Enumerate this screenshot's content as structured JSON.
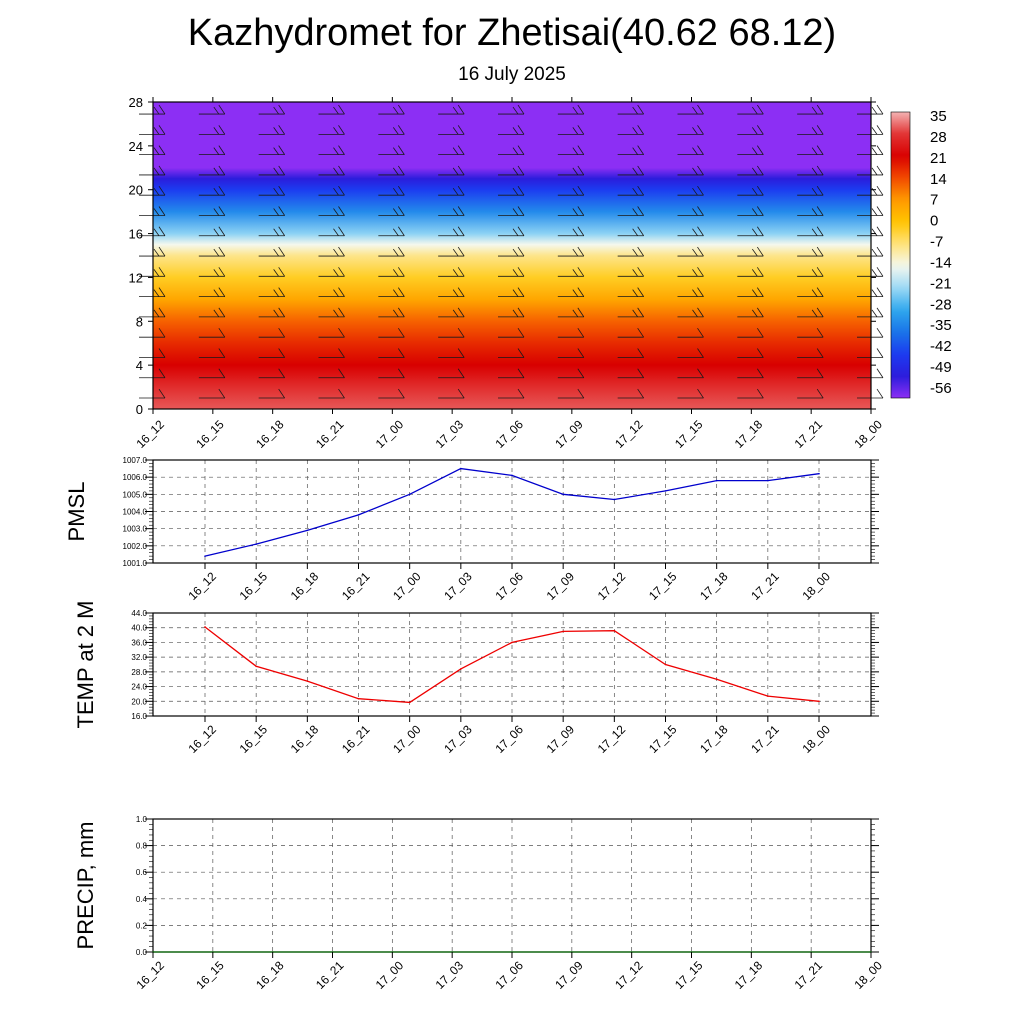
{
  "header": {
    "title": "Kazhydromet for Zhetisai(40.62 68.12)",
    "subtitle": "16 July 2025"
  },
  "chart_data": [
    {
      "type": "heatmap",
      "name": "vertical-profile",
      "x_tick_labels": [
        "16_12",
        "16_15",
        "16_18",
        "16_21",
        "17_00",
        "17_03",
        "17_06",
        "17_09",
        "17_12",
        "17_15",
        "17_18",
        "17_21",
        "18_00"
      ],
      "y_tick_labels": [
        "0",
        "4",
        "8",
        "12",
        "16",
        "20",
        "24",
        "28"
      ],
      "ylim": [
        0,
        28
      ],
      "colorbar": {
        "labels": [
          "35",
          "28",
          "21",
          "14",
          "7",
          "0",
          "-7",
          "-14",
          "-21",
          "-28",
          "-35",
          "-42",
          "-49",
          "-56"
        ],
        "stops": [
          {
            "value": 35,
            "color": "#f4b3b3"
          },
          {
            "value": 28,
            "color": "#e23434"
          },
          {
            "value": 21,
            "color": "#d80000"
          },
          {
            "value": 14,
            "color": "#f24a00"
          },
          {
            "value": 7,
            "color": "#ff9a00"
          },
          {
            "value": 0,
            "color": "#ffc400"
          },
          {
            "value": -7,
            "color": "#ffe27a"
          },
          {
            "value": -14,
            "color": "#f4f8ee"
          },
          {
            "value": -21,
            "color": "#9cd9f5"
          },
          {
            "value": -28,
            "color": "#2fa8ee"
          },
          {
            "value": -35,
            "color": "#1a74e8"
          },
          {
            "value": -42,
            "color": "#1c3cf0"
          },
          {
            "value": -49,
            "color": "#2b1ddc"
          },
          {
            "value": -56,
            "color": "#8c2ff4"
          }
        ]
      },
      "profile": [
        {
          "y": 0,
          "value": 30
        },
        {
          "y": 2,
          "value": 27
        },
        {
          "y": 4,
          "value": 21
        },
        {
          "y": 6,
          "value": 17
        },
        {
          "y": 8,
          "value": 12
        },
        {
          "y": 10,
          "value": 5
        },
        {
          "y": 12,
          "value": -2
        },
        {
          "y": 14,
          "value": -8
        },
        {
          "y": 15,
          "value": -14
        },
        {
          "y": 16,
          "value": -22
        },
        {
          "y": 18,
          "value": -32
        },
        {
          "y": 20,
          "value": -42
        },
        {
          "y": 21,
          "value": -49
        },
        {
          "y": 22,
          "value": -56
        },
        {
          "y": 28,
          "value": -58
        }
      ]
    },
    {
      "type": "line",
      "name": "pmsl",
      "ylabel": "PMSL",
      "categories": [
        "16_12",
        "16_15",
        "16_18",
        "16_21",
        "17_00",
        "17_03",
        "17_06",
        "17_09",
        "17_12",
        "17_15",
        "17_18",
        "17_21",
        "18_00"
      ],
      "values": [
        1001.4,
        1002.1,
        1002.9,
        1003.8,
        1005.0,
        1006.5,
        1006.1,
        1005.0,
        1004.7,
        1005.2,
        1005.8,
        1005.8,
        1006.2
      ],
      "ylim": [
        1001.0,
        1007.0
      ],
      "y_tick_labels": [
        "1001.0",
        "1002.0",
        "1003.0",
        "1004.0",
        "1005.0",
        "1006.0",
        "1007.0"
      ],
      "color": "#0000cc"
    },
    {
      "type": "line",
      "name": "temp-2m",
      "ylabel": "TEMP at 2 M",
      "categories": [
        "16_12",
        "16_15",
        "16_18",
        "16_21",
        "17_00",
        "17_03",
        "17_06",
        "17_09",
        "17_12",
        "17_15",
        "17_18",
        "17_21",
        "18_00"
      ],
      "values": [
        40.2,
        29.5,
        25.5,
        20.7,
        19.7,
        28.8,
        36.0,
        39.0,
        39.2,
        30.0,
        26.0,
        21.4,
        20.0
      ],
      "ylim": [
        16.0,
        44.0
      ],
      "y_tick_labels": [
        "16.0",
        "20.0",
        "24.0",
        "28.0",
        "32.0",
        "36.0",
        "40.0",
        "44.0"
      ],
      "color": "#ee0000"
    },
    {
      "type": "line",
      "name": "precip",
      "ylabel": "PRECIP, mm",
      "categories": [
        "16_12",
        "16_15",
        "16_18",
        "16_21",
        "17_00",
        "17_03",
        "17_06",
        "17_09",
        "17_12",
        "17_15",
        "17_18",
        "17_21",
        "18_00"
      ],
      "values": [
        0,
        0,
        0,
        0,
        0,
        0,
        0,
        0,
        0,
        0,
        0,
        0,
        0
      ],
      "ylim": [
        0.0,
        1.0
      ],
      "y_tick_labels": [
        "0.0",
        "0.2",
        "0.4",
        "0.6",
        "0.8",
        "1.0"
      ],
      "color": "#006600"
    }
  ]
}
